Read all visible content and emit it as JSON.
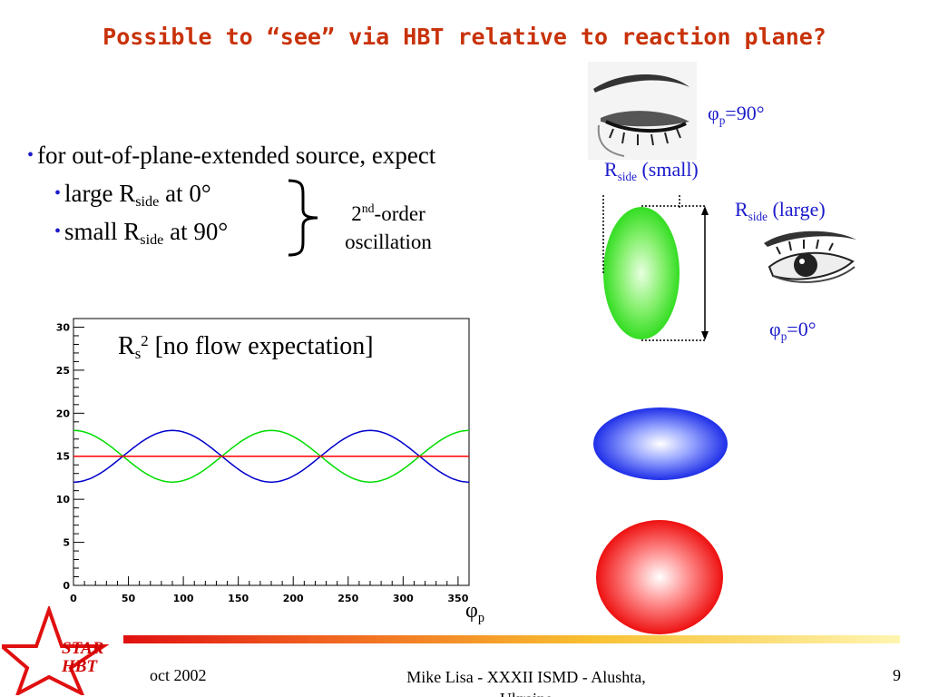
{
  "title": "Possible to “see” via HBT relative to reaction plane?",
  "bullets": {
    "main": "for out-of-plane-extended source, expect",
    "sub1_a": "large R",
    "sub1_sub": "side",
    "sub1_b": " at 0°",
    "sub2_a": "small R",
    "sub2_sub": "side",
    "sub2_b": " at 90°"
  },
  "brace_note": {
    "order_num": "2",
    "order_sup": "nd",
    "order_rest": "-order",
    "line2": "oscillation"
  },
  "labels": {
    "phi90_base": "φ",
    "phi90_sub": "p",
    "phi90_val": "=90°",
    "rside_small_base": "R",
    "rside_small_sub": "side",
    "rside_small_rest": " (small)",
    "rside_large_base": "R",
    "rside_large_sub": "side",
    "rside_large_rest": " (large)",
    "phi0_base": "φ",
    "phi0_sub": "p",
    "phi0_val": "=0°"
  },
  "chart_data": {
    "type": "line",
    "title_base": "R",
    "title_sub": "s",
    "title_sup": "2",
    "title_rest": " [no flow expectation]",
    "xlabel_base": "φ",
    "xlabel_sub": "p",
    "xlim": [
      0,
      360
    ],
    "ylim": [
      0,
      31
    ],
    "x_ticks": [
      0,
      50,
      100,
      150,
      200,
      250,
      300,
      350
    ],
    "y_ticks": [
      0,
      5,
      10,
      15,
      20,
      25,
      30
    ],
    "y_tick_labels": [
      "0",
      "5",
      "10",
      "15",
      "20",
      "25",
      "30"
    ],
    "series": [
      {
        "color": "#00dd00",
        "formula": "15 + 3*cos(2*phi)",
        "x": [
          0,
          45,
          90,
          135,
          180,
          225,
          270,
          315,
          360
        ],
        "values": [
          18,
          15,
          12,
          15,
          18,
          15,
          12,
          15,
          18
        ]
      },
      {
        "color": "#0000cc",
        "formula": "15 - 3*cos(2*phi)",
        "x": [
          0,
          45,
          90,
          135,
          180,
          225,
          270,
          315,
          360
        ],
        "values": [
          12,
          15,
          18,
          15,
          12,
          15,
          18,
          15,
          12
        ]
      },
      {
        "color": "#ff0000",
        "formula": "15",
        "x": [
          0,
          360
        ],
        "values": [
          15,
          15
        ]
      }
    ]
  },
  "footer": {
    "date": "oct 2002",
    "author": "Mike Lisa - XXXII ISMD - Alushta, Ukraine",
    "page": "9"
  },
  "logo": {
    "line1": "STAR",
    "line2": "HBT"
  },
  "colors": {
    "title": "#c8320a",
    "accent_blue": "#1b1bcc",
    "green_ellipse": "#44ee33",
    "blue_ellipse": "#2a3af0",
    "red_circle": "#f01818",
    "logo_red": "#d00000"
  }
}
